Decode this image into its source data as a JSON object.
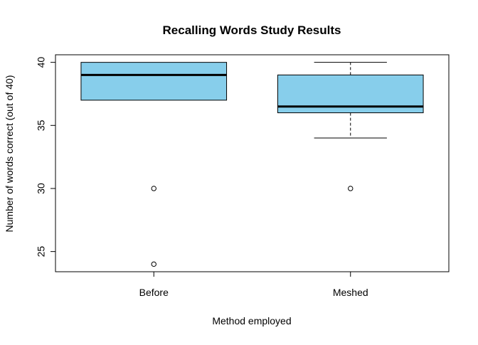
{
  "chart_data": {
    "type": "boxplot",
    "title": "Recalling Words Study Results",
    "xlabel": "Method employed",
    "ylabel": "Number of words correct (out of 40)",
    "categories": [
      "Before",
      "Meshed"
    ],
    "ylim": [
      23.4,
      40.6
    ],
    "yticks": [
      25,
      30,
      35,
      40
    ],
    "ytick_labels": [
      "25",
      "30",
      "35",
      "40"
    ],
    "box_color": "#87CEEB",
    "boxes": [
      {
        "name": "Before",
        "whisker_low": 37,
        "q1": 37,
        "median": 39,
        "q3": 40,
        "whisker_high": 40,
        "outliers": [
          30,
          24
        ]
      },
      {
        "name": "Meshed",
        "whisker_low": 34,
        "q1": 36,
        "median": 36.5,
        "q3": 39,
        "whisker_high": 40,
        "outliers": [
          30
        ]
      }
    ],
    "grid": false,
    "legend": "none"
  }
}
